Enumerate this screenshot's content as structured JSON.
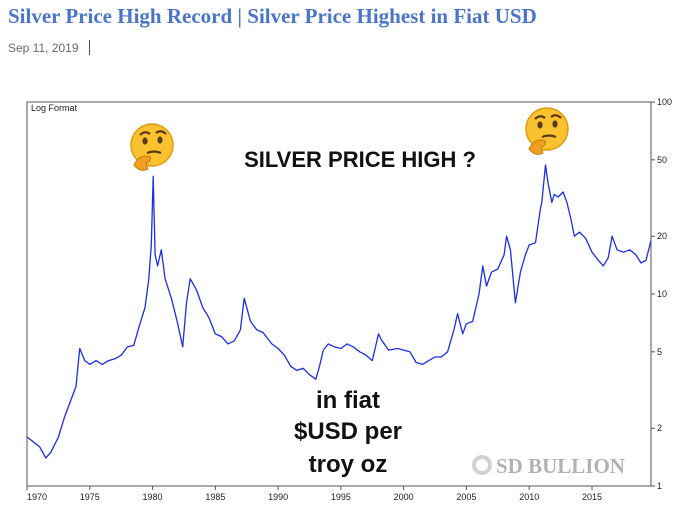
{
  "post": {
    "title": "Silver Price High Record | Silver Price Highest in Fiat USD",
    "date": "Sep 11, 2019"
  },
  "chart_data": {
    "type": "line",
    "subtitle": "Log Format",
    "title": "SILVER PRICE HIGH ?",
    "annotation_lines": [
      "in fiat",
      "$USD per",
      "troy oz"
    ],
    "watermark": "SD BULLION",
    "y_scale": "log",
    "ylim": [
      1,
      100
    ],
    "xlim": [
      1970,
      2019.7
    ],
    "x_ticks": [
      "1970",
      "1975",
      "1980",
      "1985",
      "1990",
      "1995",
      "2000",
      "2005",
      "2010",
      "2015"
    ],
    "y_ticks": [
      {
        "label": "100",
        "value": 100
      },
      {
        "label": "50",
        "value": 50
      },
      {
        "label": "20",
        "value": 20
      },
      {
        "label": "10",
        "value": 10
      },
      {
        "label": "5",
        "value": 5
      },
      {
        "label": "2",
        "value": 2
      },
      {
        "label": "1",
        "value": 1
      }
    ],
    "grid": false,
    "line_color": "#1a2ee6",
    "series": [
      {
        "x": [
          1970.0,
          1970.5,
          1971.0,
          1971.5,
          1971.9,
          1972.5,
          1973.0,
          1973.5,
          1973.9,
          1974.2,
          1974.6,
          1975.0,
          1975.5,
          1976.0,
          1976.5,
          1977.0,
          1977.5,
          1978.0,
          1978.5,
          1979.0,
          1979.4,
          1979.7,
          1979.9,
          1980.05,
          1980.2,
          1980.4,
          1980.7,
          1981.0,
          1981.5,
          1982.0,
          1982.4,
          1982.7,
          1983.0,
          1983.5,
          1984.0,
          1984.5,
          1985.0,
          1985.5,
          1986.0,
          1986.5,
          1987.0,
          1987.3,
          1987.8,
          1988.3,
          1988.8,
          1989.5,
          1990.0,
          1990.5,
          1991.0,
          1991.5,
          1992.0,
          1992.5,
          1993.0,
          1993.3,
          1993.6,
          1994.0,
          1994.5,
          1995.0,
          1995.5,
          1996.0,
          1996.5,
          1997.0,
          1997.5,
          1998.0,
          1998.2,
          1998.8,
          1999.5,
          2000.0,
          2000.5,
          2001.0,
          2001.5,
          2002.0,
          2002.5,
          2003.0,
          2003.5,
          2004.0,
          2004.3,
          2004.7,
          2005.0,
          2005.5,
          2006.0,
          2006.3,
          2006.6,
          2007.0,
          2007.5,
          2008.0,
          2008.2,
          2008.5,
          2008.9,
          2009.3,
          2009.7,
          2010.0,
          2010.5,
          2010.9,
          2011.0,
          2011.3,
          2011.5,
          2011.8,
          2012.0,
          2012.3,
          2012.7,
          2013.0,
          2013.3,
          2013.6,
          2014.0,
          2014.5,
          2015.0,
          2015.5,
          2015.9,
          2016.3,
          2016.6,
          2017.0,
          2017.5,
          2018.0,
          2018.5,
          2018.9,
          2019.3,
          2019.7
        ],
        "y": [
          1.8,
          1.7,
          1.6,
          1.4,
          1.5,
          1.8,
          2.3,
          2.8,
          3.3,
          5.2,
          4.5,
          4.3,
          4.5,
          4.3,
          4.5,
          4.6,
          4.8,
          5.3,
          5.4,
          7.0,
          8.5,
          12.0,
          18.0,
          41.0,
          16.0,
          14.0,
          17.0,
          12.0,
          9.5,
          7.0,
          5.3,
          9.0,
          12.0,
          10.5,
          8.5,
          7.5,
          6.2,
          6.0,
          5.5,
          5.7,
          6.5,
          9.5,
          7.2,
          6.5,
          6.3,
          5.5,
          5.2,
          4.8,
          4.2,
          4.0,
          4.1,
          3.8,
          3.6,
          4.2,
          5.1,
          5.5,
          5.3,
          5.2,
          5.5,
          5.3,
          5.0,
          4.8,
          4.5,
          6.2,
          5.8,
          5.1,
          5.2,
          5.1,
          5.0,
          4.4,
          4.3,
          4.5,
          4.7,
          4.7,
          5.0,
          6.5,
          7.9,
          6.2,
          7.0,
          7.2,
          10.0,
          14.0,
          11.0,
          13.0,
          13.5,
          16.0,
          20.0,
          17.0,
          9.0,
          13.0,
          16.0,
          18.0,
          18.5,
          28.0,
          30.0,
          47.0,
          38.0,
          30.0,
          33.0,
          32.0,
          34.0,
          30.0,
          25.0,
          20.0,
          21.0,
          19.5,
          16.5,
          15.0,
          14.0,
          15.5,
          20.0,
          17.0,
          16.5,
          17.0,
          16.0,
          14.5,
          15.0,
          19.0
        ]
      }
    ]
  }
}
